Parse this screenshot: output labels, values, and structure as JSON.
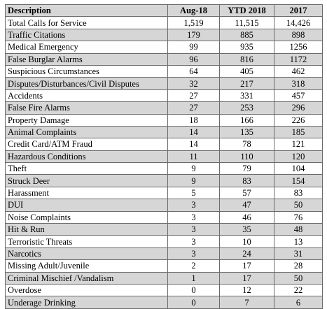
{
  "table": {
    "headers": [
      "Description",
      "Aug-18",
      "YTD 2018",
      "2017"
    ],
    "rows": [
      [
        "Total Calls for Service",
        "1,519",
        "11,515",
        "14,426"
      ],
      [
        "Traffic Citations",
        "179",
        "885",
        "898"
      ],
      [
        "Medical Emergency",
        "99",
        "935",
        "1256"
      ],
      [
        "False Burglar Alarms",
        "96",
        "816",
        "1172"
      ],
      [
        "Suspicious Circumstances",
        "64",
        "405",
        "462"
      ],
      [
        "Disputes/Disturbances/Civil Disputes",
        "32",
        "217",
        "318"
      ],
      [
        "Accidents",
        "27",
        "331",
        "457"
      ],
      [
        "False Fire Alarms",
        "27",
        "253",
        "296"
      ],
      [
        "Property Damage",
        "18",
        "166",
        "226"
      ],
      [
        "Animal Complaints",
        "14",
        "135",
        "185"
      ],
      [
        "Credit Card/ATM Fraud",
        "14",
        "78",
        "121"
      ],
      [
        "Hazardous Conditions",
        "11",
        "110",
        "120"
      ],
      [
        "Theft",
        "9",
        "79",
        "104"
      ],
      [
        "Struck Deer",
        "9",
        "83",
        "154"
      ],
      [
        "Harassment",
        "5",
        "57",
        "83"
      ],
      [
        "DUI",
        "3",
        "47",
        "50"
      ],
      [
        "Noise Complaints",
        "3",
        "46",
        "76"
      ],
      [
        "Hit & Run",
        "3",
        "35",
        "48"
      ],
      [
        "Terroristic Threats",
        "3",
        "10",
        "13"
      ],
      [
        "Narcotics",
        "3",
        "24",
        "31"
      ],
      [
        "Missing Adult/Juvenile",
        "2",
        "17",
        "28"
      ],
      [
        "Criminal Mischief /Vandalism",
        "1",
        "17",
        "50"
      ],
      [
        "Overdose",
        "0",
        "12",
        "22"
      ],
      [
        "Underage Drinking",
        "0",
        "7",
        "6"
      ]
    ]
  }
}
